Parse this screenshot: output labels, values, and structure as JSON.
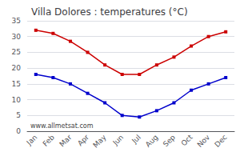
{
  "chart_data": {
    "type": "line",
    "title": "Villa Dolores : temperatures (°C)",
    "categories": [
      "Jan",
      "Feb",
      "Mar",
      "Apr",
      "May",
      "Jun",
      "Jul",
      "Aug",
      "Sep",
      "Oct",
      "Nov",
      "Dec"
    ],
    "series": [
      {
        "color": "#cc0000",
        "marker": "square",
        "values": [
          32,
          31,
          28.5,
          25,
          21,
          18,
          18,
          21,
          23.5,
          27,
          30,
          31.5
        ]
      },
      {
        "color": "#0000cc",
        "marker": "square",
        "values": [
          18,
          17,
          15,
          12,
          9,
          5,
          4.5,
          6.5,
          9,
          13,
          15,
          17
        ]
      }
    ],
    "ylim": [
      0,
      35
    ],
    "yticks": [
      0,
      5,
      10,
      15,
      20,
      25,
      30,
      35
    ],
    "grid": true,
    "annotations": [
      "www.allmetsat.com"
    ]
  }
}
